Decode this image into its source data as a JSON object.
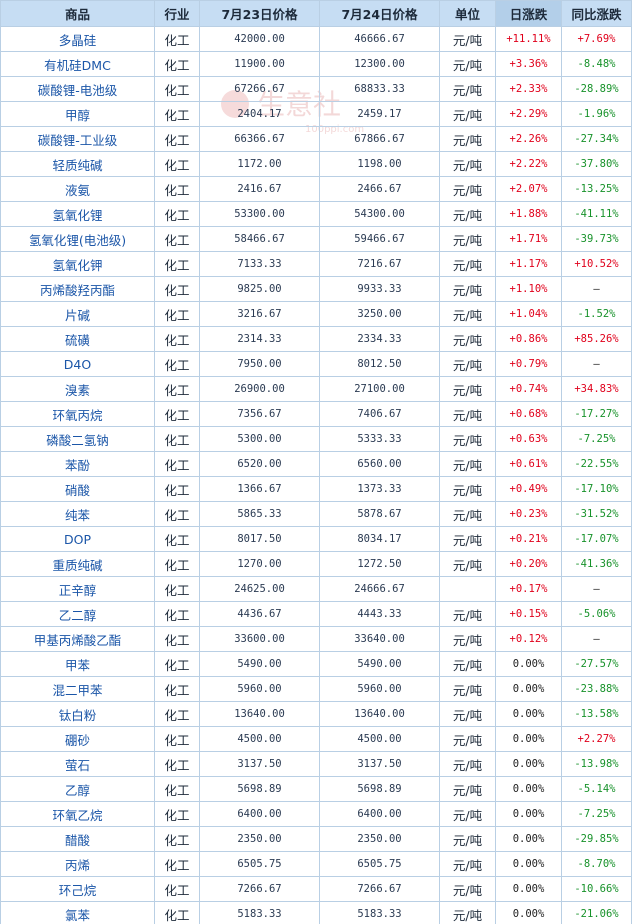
{
  "headers": {
    "name": "商品",
    "industry": "行业",
    "price1": "7月23日价格",
    "price2": "7月24日价格",
    "unit": "单位",
    "daily": "日涨跌",
    "yoy": "同比涨跌"
  },
  "watermark": {
    "text": "生意社",
    "url": "100ppi.com"
  },
  "colors": {
    "up": "#e0001b",
    "down": "#17922a",
    "header_bg": "#c6ddf3",
    "border": "#b9cfe4",
    "link": "#1b56a8"
  },
  "rows": [
    {
      "name": "多晶硅",
      "industry": "化工",
      "p1": "42000.00",
      "p2": "46666.67",
      "unit": "元/吨",
      "daily": "+11.11%",
      "yoy": "+7.69%"
    },
    {
      "name": "有机硅DMC",
      "industry": "化工",
      "p1": "11900.00",
      "p2": "12300.00",
      "unit": "元/吨",
      "daily": "+3.36%",
      "yoy": "-8.48%"
    },
    {
      "name": "碳酸锂-电池级",
      "industry": "化工",
      "p1": "67266.67",
      "p2": "68833.33",
      "unit": "元/吨",
      "daily": "+2.33%",
      "yoy": "-28.89%"
    },
    {
      "name": "甲醇",
      "industry": "化工",
      "p1": "2404.17",
      "p2": "2459.17",
      "unit": "元/吨",
      "daily": "+2.29%",
      "yoy": "-1.96%"
    },
    {
      "name": "碳酸锂-工业级",
      "industry": "化工",
      "p1": "66366.67",
      "p2": "67866.67",
      "unit": "元/吨",
      "daily": "+2.26%",
      "yoy": "-27.34%"
    },
    {
      "name": "轻质纯碱",
      "industry": "化工",
      "p1": "1172.00",
      "p2": "1198.00",
      "unit": "元/吨",
      "daily": "+2.22%",
      "yoy": "-37.80%"
    },
    {
      "name": "液氨",
      "industry": "化工",
      "p1": "2416.67",
      "p2": "2466.67",
      "unit": "元/吨",
      "daily": "+2.07%",
      "yoy": "-13.25%"
    },
    {
      "name": "氢氧化锂",
      "industry": "化工",
      "p1": "53300.00",
      "p2": "54300.00",
      "unit": "元/吨",
      "daily": "+1.88%",
      "yoy": "-41.11%"
    },
    {
      "name": "氢氧化锂(电池级)",
      "industry": "化工",
      "p1": "58466.67",
      "p2": "59466.67",
      "unit": "元/吨",
      "daily": "+1.71%",
      "yoy": "-39.73%"
    },
    {
      "name": "氢氧化钾",
      "industry": "化工",
      "p1": "7133.33",
      "p2": "7216.67",
      "unit": "元/吨",
      "daily": "+1.17%",
      "yoy": "+10.52%"
    },
    {
      "name": "丙烯酸羟丙酯",
      "industry": "化工",
      "p1": "9825.00",
      "p2": "9933.33",
      "unit": "元/吨",
      "daily": "+1.10%",
      "yoy": "—"
    },
    {
      "name": "片碱",
      "industry": "化工",
      "p1": "3216.67",
      "p2": "3250.00",
      "unit": "元/吨",
      "daily": "+1.04%",
      "yoy": "-1.52%"
    },
    {
      "name": "硫磺",
      "industry": "化工",
      "p1": "2314.33",
      "p2": "2334.33",
      "unit": "元/吨",
      "daily": "+0.86%",
      "yoy": "+85.26%"
    },
    {
      "name": "D4O",
      "industry": "化工",
      "p1": "7950.00",
      "p2": "8012.50",
      "unit": "元/吨",
      "daily": "+0.79%",
      "yoy": "—"
    },
    {
      "name": "溴素",
      "industry": "化工",
      "p1": "26900.00",
      "p2": "27100.00",
      "unit": "元/吨",
      "daily": "+0.74%",
      "yoy": "+34.83%"
    },
    {
      "name": "环氧丙烷",
      "industry": "化工",
      "p1": "7356.67",
      "p2": "7406.67",
      "unit": "元/吨",
      "daily": "+0.68%",
      "yoy": "-17.27%"
    },
    {
      "name": "磷酸二氢钠",
      "industry": "化工",
      "p1": "5300.00",
      "p2": "5333.33",
      "unit": "元/吨",
      "daily": "+0.63%",
      "yoy": "-7.25%"
    },
    {
      "name": "苯酚",
      "industry": "化工",
      "p1": "6520.00",
      "p2": "6560.00",
      "unit": "元/吨",
      "daily": "+0.61%",
      "yoy": "-22.55%"
    },
    {
      "name": "硝酸",
      "industry": "化工",
      "p1": "1366.67",
      "p2": "1373.33",
      "unit": "元/吨",
      "daily": "+0.49%",
      "yoy": "-17.10%"
    },
    {
      "name": "纯苯",
      "industry": "化工",
      "p1": "5865.33",
      "p2": "5878.67",
      "unit": "元/吨",
      "daily": "+0.23%",
      "yoy": "-31.52%"
    },
    {
      "name": "DOP",
      "industry": "化工",
      "p1": "8017.50",
      "p2": "8034.17",
      "unit": "元/吨",
      "daily": "+0.21%",
      "yoy": "-17.07%"
    },
    {
      "name": "重质纯碱",
      "industry": "化工",
      "p1": "1270.00",
      "p2": "1272.50",
      "unit": "元/吨",
      "daily": "+0.20%",
      "yoy": "-41.36%"
    },
    {
      "name": "正辛醇",
      "industry": "化工",
      "p1": "24625.00",
      "p2": "24666.67",
      "unit": "",
      "daily": "+0.17%",
      "yoy": "—"
    },
    {
      "name": "乙二醇",
      "industry": "化工",
      "p1": "4436.67",
      "p2": "4443.33",
      "unit": "元/吨",
      "daily": "+0.15%",
      "yoy": "-5.06%"
    },
    {
      "name": "甲基丙烯酸乙酯",
      "industry": "化工",
      "p1": "33600.00",
      "p2": "33640.00",
      "unit": "元/吨",
      "daily": "+0.12%",
      "yoy": "—"
    },
    {
      "name": "甲苯",
      "industry": "化工",
      "p1": "5490.00",
      "p2": "5490.00",
      "unit": "元/吨",
      "daily": "0.00%",
      "yoy": "-27.57%"
    },
    {
      "name": "混二甲苯",
      "industry": "化工",
      "p1": "5960.00",
      "p2": "5960.00",
      "unit": "元/吨",
      "daily": "0.00%",
      "yoy": "-23.88%"
    },
    {
      "name": "钛白粉",
      "industry": "化工",
      "p1": "13640.00",
      "p2": "13640.00",
      "unit": "元/吨",
      "daily": "0.00%",
      "yoy": "-13.58%"
    },
    {
      "name": "硼砂",
      "industry": "化工",
      "p1": "4500.00",
      "p2": "4500.00",
      "unit": "元/吨",
      "daily": "0.00%",
      "yoy": "+2.27%"
    },
    {
      "name": "萤石",
      "industry": "化工",
      "p1": "3137.50",
      "p2": "3137.50",
      "unit": "元/吨",
      "daily": "0.00%",
      "yoy": "-13.98%"
    },
    {
      "name": "乙醇",
      "industry": "化工",
      "p1": "5698.89",
      "p2": "5698.89",
      "unit": "元/吨",
      "daily": "0.00%",
      "yoy": "-5.14%"
    },
    {
      "name": "环氧乙烷",
      "industry": "化工",
      "p1": "6400.00",
      "p2": "6400.00",
      "unit": "元/吨",
      "daily": "0.00%",
      "yoy": "-7.25%"
    },
    {
      "name": "醋酸",
      "industry": "化工",
      "p1": "2350.00",
      "p2": "2350.00",
      "unit": "元/吨",
      "daily": "0.00%",
      "yoy": "-29.85%"
    },
    {
      "name": "丙烯",
      "industry": "化工",
      "p1": "6505.75",
      "p2": "6505.75",
      "unit": "元/吨",
      "daily": "0.00%",
      "yoy": "-8.70%"
    },
    {
      "name": "环己烷",
      "industry": "化工",
      "p1": "7266.67",
      "p2": "7266.67",
      "unit": "元/吨",
      "daily": "0.00%",
      "yoy": "-10.66%"
    },
    {
      "name": "氯苯",
      "industry": "化工",
      "p1": "5183.33",
      "p2": "5183.33",
      "unit": "元/吨",
      "daily": "0.00%",
      "yoy": "-21.06%"
    }
  ]
}
